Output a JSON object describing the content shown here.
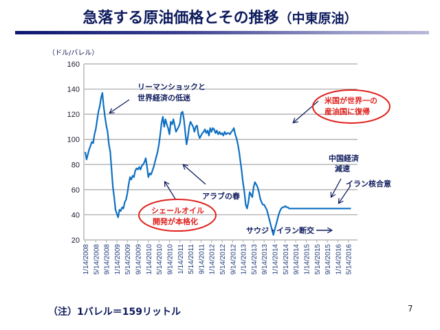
{
  "slide": {
    "title_main": "急落する原油価格とその推移",
    "title_sub": "（中東原油）",
    "note": "（注）1バレル＝159リットル",
    "page_number": "7"
  },
  "colors": {
    "title": "#0d1a5c",
    "line": "#0e6fc2",
    "annotation": "#0d1a5c",
    "highlight": "#e0201c",
    "grid": "#a6a6a6"
  },
  "chart_data": {
    "type": "line",
    "title": "",
    "ylabel": "（ドル/バレル）",
    "xlabel": "",
    "ylim": [
      20,
      160
    ],
    "yticks": [
      20,
      40,
      60,
      80,
      100,
      120,
      140,
      160
    ],
    "grid": true,
    "xticks": [
      "1/14/2008",
      "5/14/2008",
      "9/14/2008",
      "1/14/2009",
      "5/14/2009",
      "9/14/2009",
      "1/14/2010",
      "5/14/2010",
      "9/14/2010",
      "1/14/2011",
      "5/14/2011",
      "9/14/2011",
      "1/14/2012",
      "5/14/2012",
      "9/14/2012",
      "1/14/2013",
      "5/14/2013",
      "9/14/2013",
      "1/14/2014",
      "5/14/2014",
      "9/14/2014",
      "1/14/2015",
      "5/14/2015",
      "9/14/2015",
      "1/14/2016",
      "5/14/2016"
    ],
    "series": [
      {
        "name": "中東原油",
        "x_months_from_jan2008": [
          0,
          0.5,
          1,
          1.5,
          2,
          2.5,
          3,
          3.5,
          4,
          4.5,
          5,
          5.5,
          6,
          6.5,
          7,
          7.5,
          8,
          8.5,
          9,
          9.5,
          10,
          10.5,
          11,
          11.5,
          12,
          12.5,
          13,
          13.5,
          14,
          14.5,
          15,
          15.5,
          16,
          16.5,
          17,
          17.5,
          18,
          18.5,
          19,
          19.5,
          20,
          20.5,
          21,
          21.5,
          22,
          22.5,
          23,
          23.5,
          24,
          24.5,
          25,
          25.5,
          26,
          26.5,
          27,
          27.5,
          28,
          28.5,
          29,
          29.5,
          30,
          30.5,
          31,
          31.5,
          32,
          32.5,
          33,
          33.5,
          34,
          34.5,
          35,
          35.5,
          36,
          36.5,
          37,
          37.5,
          38,
          38.5,
          39,
          39.5,
          40,
          40.5,
          41,
          41.5,
          42,
          42.5,
          43,
          43.5,
          44,
          44.5,
          45,
          45.5,
          46,
          46.5,
          47,
          47.5,
          48,
          48.5,
          49,
          49.5,
          50,
          50.5,
          51,
          51.5,
          52,
          52.5,
          53,
          53.5,
          54,
          54.5,
          55,
          55.5,
          56,
          56.5,
          57,
          57.5,
          58,
          58.5,
          59,
          59.5,
          60,
          60.5,
          61,
          61.5,
          62,
          62.5,
          63,
          63.5,
          64,
          64.5,
          65,
          65.5,
          66,
          66.5,
          67,
          67.5,
          68,
          68.5,
          69,
          69.5,
          70,
          70.5,
          71,
          71.5,
          72,
          72.5,
          73,
          73.5,
          74,
          74.5,
          75,
          75.5,
          76,
          76.5,
          77,
          77.5,
          78,
          78.5,
          79,
          79.5,
          80,
          80.5,
          81,
          81.5,
          82,
          82.5,
          83,
          83.5,
          84,
          84.5,
          85,
          85.5,
          86,
          86.5,
          87,
          87.5,
          88,
          88.5,
          89,
          89.5,
          90,
          90.5,
          91,
          91.5,
          92,
          92.5,
          93,
          93.5,
          94,
          94.5,
          95,
          95.5,
          96,
          96.5,
          97,
          97.5,
          98,
          98.5,
          99,
          99.5,
          100,
          100.5,
          101
        ],
        "values": [
          90,
          84,
          88,
          92,
          95,
          98,
          97,
          104,
          108,
          115,
          122,
          126,
          133,
          137,
          126,
          118,
          111,
          106,
          96,
          90,
          76,
          62,
          54,
          44,
          41,
          38,
          44,
          43,
          46,
          45,
          50,
          52,
          57,
          64,
          70,
          68,
          71,
          70,
          75,
          77,
          76,
          78,
          76,
          79,
          80,
          82,
          85,
          78,
          70,
          73,
          72,
          75,
          78,
          82,
          86,
          90,
          96,
          104,
          113,
          118,
          110,
          116,
          112,
          109,
          104,
          114,
          112,
          116,
          111,
          106,
          108,
          110,
          113,
          121,
          122,
          116,
          106,
          96,
          102,
          110,
          114,
          112,
          110,
          106,
          110,
          111,
          104,
          101,
          103,
          105,
          106,
          108,
          105,
          107,
          103,
          109,
          106,
          109,
          108,
          105,
          107,
          104,
          106,
          104,
          105,
          103,
          106,
          104,
          105,
          105,
          104,
          106,
          107,
          109,
          104,
          101,
          96,
          90,
          82,
          74,
          65,
          58,
          48,
          45,
          50,
          58,
          56,
          54,
          62,
          66,
          64,
          62,
          58,
          53,
          50,
          48,
          48,
          46,
          44,
          40,
          36,
          32,
          28,
          24,
          28,
          32,
          36,
          40,
          43,
          45,
          46,
          46,
          47,
          46,
          46,
          45,
          45,
          45,
          45,
          45,
          45,
          45,
          45,
          45,
          45,
          45,
          45,
          45,
          45,
          45,
          45,
          45,
          45,
          45,
          45,
          45,
          45,
          45,
          45,
          45,
          45,
          45,
          45,
          45,
          45,
          45,
          45,
          45,
          45,
          45,
          45,
          45,
          45,
          45,
          45,
          45,
          45,
          45,
          45,
          45,
          45,
          45,
          45
        ]
      }
    ],
    "annotations": [
      {
        "text": "リーマンショックと",
        "line": 1,
        "group": "lehman"
      },
      {
        "text": "世界経済の低迷",
        "line": 2,
        "group": "lehman"
      },
      {
        "text": "米国が世界一の",
        "line": 1,
        "group": "us",
        "style": "red-ellipse"
      },
      {
        "text": "産油国に復帰",
        "line": 2,
        "group": "us",
        "style": "red-ellipse"
      },
      {
        "text": "中国経済",
        "line": 1,
        "group": "china"
      },
      {
        "text": "減速",
        "line": 2,
        "group": "china"
      },
      {
        "text": "イラン核合意",
        "line": 1,
        "group": "iran-deal"
      },
      {
        "text": "アラブの春",
        "line": 1,
        "group": "arab"
      },
      {
        "text": "シェールオイル",
        "line": 1,
        "group": "shale",
        "style": "red-ellipse"
      },
      {
        "text": "開発が本格化",
        "line": 2,
        "group": "shale",
        "style": "red-ellipse"
      },
      {
        "text": "サウジ・イラン断交",
        "line": 1,
        "group": "saudi"
      }
    ]
  }
}
